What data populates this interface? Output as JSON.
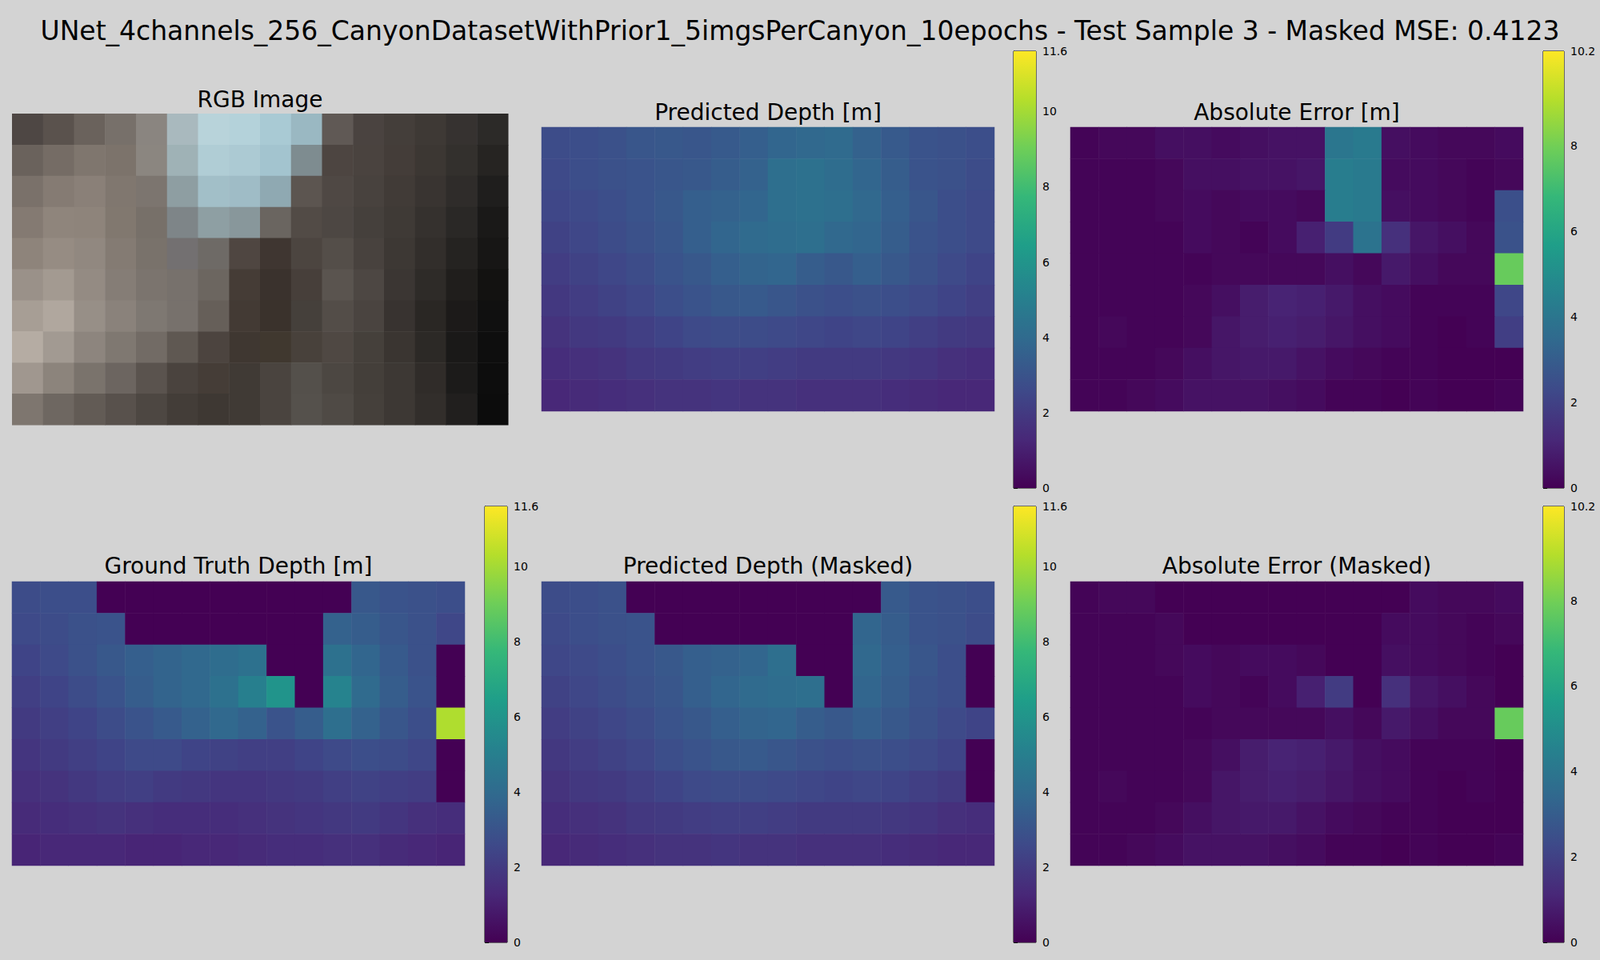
{
  "title": "UNet_4channels_256_CanyonDatasetWithPrior1_5imgsPerCanyon_10epochs - Test Sample 3 - Masked MSE: 0.4123",
  "chart_data": [
    {
      "type": "image",
      "title": "RGB Image",
      "pixels": [
        [
          "#4e4744",
          "#5a524d",
          "#6a625c",
          "#77706a",
          "#8a8580",
          "#a9b9be",
          "#b8d3da",
          "#b4d2da",
          "#a9cad4",
          "#9ab8c2",
          "#605955",
          "#4a4340",
          "#443e3a",
          "#3e3935",
          "#363230",
          "#2c2a28"
        ],
        [
          "#6a625c",
          "#756c65",
          "#7f766e",
          "#7c736b",
          "#8b8680",
          "#9fb2b6",
          "#b0cdd5",
          "#accad3",
          "#a3c4cf",
          "#7e8c90",
          "#4d4541",
          "#4a433f",
          "#443d39",
          "#3c3733",
          "#33302d",
          "#262422"
        ],
        [
          "#7a716a",
          "#857b73",
          "#8a8078",
          "#80776f",
          "#7c756f",
          "#8e9ea2",
          "#a2bfc8",
          "#9fbcc6",
          "#8fa9b2",
          "#5c5550",
          "#4f4844",
          "#48423e",
          "#413b37",
          "#393431",
          "#2f2c2a",
          "#1f1e1d"
        ],
        [
          "#847a72",
          "#8f857c",
          "#8e847b",
          "#81786f",
          "#777069",
          "#7e8588",
          "#8e9fa3",
          "#88979b",
          "#6a6560",
          "#524b46",
          "#4d4743",
          "#45403c",
          "#3f3a36",
          "#35312e",
          "#2a2826",
          "#1a1918"
        ],
        [
          "#8e847b",
          "#968c83",
          "#918880",
          "#847b73",
          "#79726b",
          "#737071",
          "#6e6a66",
          "#4f4641",
          "#3f3631",
          "#4c4540",
          "#544e49",
          "#48423e",
          "#3d3834",
          "#322e2b",
          "#252321",
          "#171615"
        ],
        [
          "#9a9189",
          "#a39a91",
          "#948b83",
          "#857d76",
          "#7b746e",
          "#77716c",
          "#6c6660",
          "#453c36",
          "#3a322d",
          "#473f3a",
          "#5a544f",
          "#4d4743",
          "#3b3633",
          "#2e2b28",
          "#201e1c",
          "#131211"
        ],
        [
          "#a79e95",
          "#b0a79e",
          "#978f87",
          "#8a827b",
          "#7e7872",
          "#77716c",
          "#665f59",
          "#433a34",
          "#3a322c",
          "#45403b",
          "#534d48",
          "#4a4440",
          "#383330",
          "#2a2724",
          "#1c1a19",
          "#101010"
        ],
        [
          "#b5aca3",
          "#a29a92",
          "#8d857e",
          "#7f7871",
          "#726b65",
          "#5f5852",
          "#4c443f",
          "#3f3731",
          "#40382f",
          "#48413b",
          "#4f4843",
          "#45403b",
          "#3a3531",
          "#2c2926",
          "#1a1918",
          "#0e0e0e"
        ],
        [
          "#a0978f",
          "#8c847c",
          "#7a736c",
          "#6c6560",
          "#5a534e",
          "#4a433e",
          "#453d37",
          "#403a35",
          "#4a443f",
          "#54504b",
          "#4c4742",
          "#443f3a",
          "#3d3834",
          "#302c29",
          "#1c1b1a",
          "#0d0d0d"
        ],
        [
          "#7e766f",
          "#6e6761",
          "#625b55",
          "#58514c",
          "#4d4742",
          "#433d38",
          "#3e3833",
          "#403a35",
          "#4a443f",
          "#55514c",
          "#4f4a45",
          "#45403b",
          "#3d3834",
          "#322e2b",
          "#211f1e",
          "#0c0c0c"
        ]
      ]
    },
    {
      "type": "heatmap",
      "title": "Predicted Depth [m]",
      "colorbar_range": [
        0,
        11.6
      ],
      "colorbar_ticks": [
        0,
        2,
        4,
        6,
        8,
        10
      ],
      "cells": [
        [
          2.7,
          2.8,
          2.9,
          3.1,
          3.2,
          3.1,
          3.3,
          3.5,
          3.8,
          3.9,
          4.0,
          3.6,
          3.3,
          3.0,
          2.9,
          2.8
        ],
        [
          2.6,
          2.8,
          2.9,
          3.0,
          3.1,
          3.2,
          3.4,
          3.6,
          4.2,
          4.3,
          4.1,
          3.8,
          3.4,
          3.0,
          2.9,
          2.7
        ],
        [
          2.5,
          2.6,
          2.8,
          3.0,
          3.2,
          3.5,
          3.6,
          3.8,
          4.2,
          4.3,
          4.2,
          3.9,
          3.5,
          3.1,
          2.8,
          2.6
        ],
        [
          2.3,
          2.5,
          2.7,
          2.9,
          3.1,
          3.5,
          3.8,
          4.0,
          4.1,
          4.2,
          3.9,
          3.8,
          3.4,
          3.0,
          2.8,
          2.6
        ],
        [
          2.1,
          2.3,
          2.5,
          2.7,
          3.0,
          3.2,
          3.5,
          3.7,
          3.8,
          3.4,
          3.2,
          3.5,
          3.2,
          2.9,
          2.6,
          2.4
        ],
        [
          1.9,
          2.1,
          2.3,
          2.5,
          2.8,
          3.0,
          3.2,
          3.3,
          3.1,
          2.9,
          2.8,
          2.9,
          2.8,
          2.6,
          2.4,
          2.2
        ],
        [
          1.7,
          1.9,
          2.0,
          2.2,
          2.4,
          2.6,
          2.7,
          2.7,
          2.6,
          2.5,
          2.4,
          2.5,
          2.4,
          2.2,
          2.0,
          1.9
        ],
        [
          1.5,
          1.6,
          1.7,
          1.9,
          2.0,
          2.1,
          2.2,
          2.2,
          2.1,
          2.0,
          2.0,
          2.0,
          1.9,
          1.8,
          1.6,
          1.5
        ],
        [
          1.3,
          1.4,
          1.5,
          1.6,
          1.7,
          1.7,
          1.8,
          1.7,
          1.7,
          1.6,
          1.6,
          1.6,
          1.5,
          1.4,
          1.3,
          1.3
        ]
      ]
    },
    {
      "type": "heatmap",
      "title": "Absolute Error [m]",
      "colorbar_range": [
        0,
        10.2
      ],
      "colorbar_ticks": [
        0,
        2,
        4,
        6,
        8,
        10
      ],
      "cells": [
        [
          0.1,
          0.2,
          0.2,
          0.4,
          0.4,
          0.3,
          0.4,
          0.5,
          0.5,
          4.0,
          4.2,
          0.4,
          0.3,
          0.2,
          0.2,
          0.3
        ],
        [
          0.1,
          0.1,
          0.1,
          0.2,
          0.4,
          0.4,
          0.5,
          0.5,
          0.6,
          4.3,
          4.2,
          0.3,
          0.3,
          0.2,
          0.1,
          0.2
        ],
        [
          0.1,
          0.1,
          0.1,
          0.2,
          0.3,
          0.2,
          0.3,
          0.3,
          0.2,
          4.3,
          4.2,
          0.4,
          0.3,
          0.2,
          0.1,
          2.5
        ],
        [
          0.1,
          0.1,
          0.1,
          0.1,
          0.3,
          0.2,
          0.1,
          0.3,
          0.9,
          1.8,
          3.9,
          1.4,
          0.6,
          0.4,
          0.2,
          2.6
        ],
        [
          0.1,
          0.1,
          0.1,
          0.1,
          0.1,
          0.2,
          0.2,
          0.2,
          0.2,
          0.4,
          0.2,
          0.7,
          0.4,
          0.2,
          0.2,
          7.8
        ],
        [
          0.1,
          0.1,
          0.1,
          0.1,
          0.2,
          0.4,
          0.8,
          1.0,
          0.9,
          0.7,
          0.4,
          0.3,
          0.1,
          0.1,
          0.1,
          2.2
        ],
        [
          0.1,
          0.2,
          0.1,
          0.1,
          0.2,
          0.6,
          0.8,
          0.9,
          0.8,
          0.6,
          0.4,
          0.3,
          0.1,
          0.0,
          0.1,
          1.9
        ],
        [
          0.1,
          0.1,
          0.1,
          0.2,
          0.4,
          0.6,
          0.7,
          0.7,
          0.5,
          0.3,
          0.2,
          0.1,
          0.1,
          0.0,
          0.0,
          0.0
        ],
        [
          0.1,
          0.1,
          0.2,
          0.3,
          0.5,
          0.5,
          0.5,
          0.4,
          0.3,
          0.1,
          0.1,
          0.0,
          0.1,
          0.0,
          0.0,
          0.1
        ]
      ]
    },
    {
      "type": "heatmap",
      "title": "Ground Truth Depth [m]",
      "colorbar_range": [
        0,
        11.6
      ],
      "colorbar_ticks": [
        0,
        2,
        4,
        6,
        8,
        10
      ],
      "cells": [
        [
          2.7,
          2.8,
          2.8,
          0,
          0,
          0,
          0,
          0,
          0,
          0,
          0,
          0,
          3.2,
          3.0,
          2.9,
          2.8
        ],
        [
          2.6,
          2.7,
          2.9,
          3.0,
          0,
          0,
          0,
          0,
          0,
          0,
          0,
          3.6,
          3.4,
          3.1,
          2.9,
          2.5
        ],
        [
          2.4,
          2.6,
          2.9,
          3.2,
          3.5,
          3.7,
          3.9,
          4.1,
          4.3,
          0,
          0,
          4.3,
          3.8,
          3.3,
          2.9,
          0
        ],
        [
          2.2,
          2.4,
          2.7,
          3.0,
          3.4,
          3.7,
          3.9,
          4.3,
          5.0,
          6.0,
          0,
          5.2,
          4.0,
          3.4,
          3.0,
          0
        ],
        [
          2.0,
          2.2,
          2.4,
          2.7,
          3.0,
          3.3,
          3.6,
          3.9,
          3.6,
          3.0,
          3.4,
          4.2,
          3.6,
          3.1,
          2.8,
          10.2
        ],
        [
          1.8,
          2.0,
          2.2,
          2.4,
          2.6,
          2.6,
          2.4,
          2.3,
          2.2,
          2.2,
          2.4,
          2.6,
          2.8,
          2.7,
          2.5,
          0
        ],
        [
          1.6,
          1.7,
          1.9,
          2.1,
          2.2,
          2.0,
          1.9,
          1.8,
          1.8,
          1.9,
          2.0,
          2.2,
          2.3,
          2.2,
          2.1,
          0
        ],
        [
          1.4,
          1.5,
          1.6,
          1.7,
          1.6,
          1.5,
          1.5,
          1.5,
          1.6,
          1.7,
          1.8,
          1.9,
          2.0,
          1.8,
          1.6,
          1.5
        ],
        [
          1.2,
          1.3,
          1.3,
          1.3,
          1.2,
          1.2,
          1.3,
          1.3,
          1.4,
          1.5,
          1.5,
          1.6,
          1.6,
          1.4,
          1.3,
          1.2
        ]
      ]
    },
    {
      "type": "heatmap",
      "title": "Predicted Depth (Masked)",
      "colorbar_range": [
        0,
        11.6
      ],
      "colorbar_ticks": [
        0,
        2,
        4,
        6,
        8,
        10
      ],
      "cells": [
        [
          2.7,
          2.8,
          2.9,
          0,
          0,
          0,
          0,
          0,
          0,
          0,
          0,
          0,
          3.3,
          3.0,
          2.9,
          2.8
        ],
        [
          2.6,
          2.8,
          2.9,
          3.0,
          0,
          0,
          0,
          0,
          0,
          0,
          0,
          3.8,
          3.4,
          3.0,
          2.9,
          2.7
        ],
        [
          2.5,
          2.6,
          2.8,
          3.0,
          3.2,
          3.5,
          3.6,
          3.8,
          4.2,
          0,
          0,
          3.9,
          3.5,
          3.1,
          2.8,
          0
        ],
        [
          2.3,
          2.5,
          2.7,
          2.9,
          3.1,
          3.5,
          3.8,
          4.0,
          4.1,
          4.2,
          0,
          3.8,
          3.4,
          3.0,
          2.8,
          0
        ],
        [
          2.1,
          2.3,
          2.5,
          2.7,
          3.0,
          3.2,
          3.5,
          3.7,
          3.8,
          3.4,
          3.2,
          3.5,
          3.2,
          2.9,
          2.6,
          2.4
        ],
        [
          1.9,
          2.1,
          2.3,
          2.5,
          2.8,
          3.0,
          3.2,
          3.3,
          3.1,
          2.9,
          2.8,
          2.9,
          2.8,
          2.6,
          2.4,
          0
        ],
        [
          1.7,
          1.9,
          2.0,
          2.2,
          2.4,
          2.6,
          2.7,
          2.7,
          2.6,
          2.5,
          2.4,
          2.5,
          2.4,
          2.2,
          2.0,
          0
        ],
        [
          1.5,
          1.6,
          1.7,
          1.9,
          2.0,
          2.1,
          2.2,
          2.2,
          2.1,
          2.0,
          2.0,
          2.0,
          1.9,
          1.8,
          1.6,
          1.5
        ],
        [
          1.3,
          1.4,
          1.5,
          1.6,
          1.7,
          1.7,
          1.8,
          1.7,
          1.7,
          1.6,
          1.6,
          1.6,
          1.5,
          1.4,
          1.3,
          1.3
        ]
      ]
    },
    {
      "type": "heatmap",
      "title": "Absolute Error (Masked)",
      "colorbar_range": [
        0,
        10.2
      ],
      "colorbar_ticks": [
        0,
        2,
        4,
        6,
        8,
        10
      ],
      "cells": [
        [
          0.1,
          0.2,
          0.2,
          0,
          0,
          0,
          0,
          0,
          0,
          0,
          0,
          0,
          0.3,
          0.2,
          0.2,
          0.3
        ],
        [
          0.1,
          0.1,
          0.1,
          0.2,
          0,
          0,
          0,
          0,
          0,
          0,
          0,
          0.3,
          0.3,
          0.2,
          0.1,
          0.2
        ],
        [
          0.1,
          0.1,
          0.1,
          0.2,
          0.3,
          0.2,
          0.3,
          0.3,
          0.2,
          0,
          0,
          0.4,
          0.3,
          0.2,
          0.1,
          0
        ],
        [
          0.1,
          0.1,
          0.1,
          0.1,
          0.3,
          0.2,
          0.1,
          0.3,
          0.9,
          1.8,
          0,
          1.4,
          0.6,
          0.4,
          0.2,
          0
        ],
        [
          0.1,
          0.1,
          0.1,
          0.1,
          0.1,
          0.2,
          0.2,
          0.2,
          0.2,
          0.4,
          0.2,
          0.7,
          0.4,
          0.2,
          0.2,
          7.8
        ],
        [
          0.1,
          0.1,
          0.1,
          0.1,
          0.2,
          0.4,
          0.8,
          1.0,
          0.9,
          0.7,
          0.4,
          0.3,
          0.1,
          0.1,
          0.1,
          0
        ],
        [
          0.1,
          0.2,
          0.1,
          0.1,
          0.2,
          0.6,
          0.8,
          0.9,
          0.8,
          0.6,
          0.4,
          0.3,
          0.1,
          0.0,
          0.1,
          0
        ],
        [
          0.1,
          0.1,
          0.1,
          0.2,
          0.4,
          0.6,
          0.7,
          0.7,
          0.5,
          0.3,
          0.2,
          0.1,
          0.1,
          0.0,
          0.0,
          0.0
        ],
        [
          0.1,
          0.1,
          0.2,
          0.3,
          0.5,
          0.5,
          0.5,
          0.4,
          0.3,
          0.1,
          0.1,
          0.0,
          0.1,
          0.0,
          0.0,
          0.1
        ]
      ]
    }
  ]
}
